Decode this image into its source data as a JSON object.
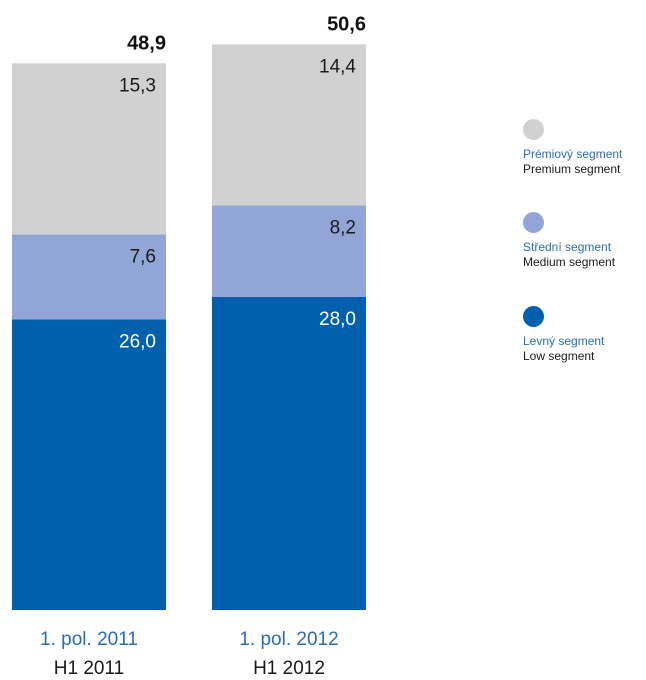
{
  "chart_data": {
    "type": "bar",
    "stacked": true,
    "categories": [
      {
        "label_cz": "1. pol. 2011",
        "label_en": "H1 2011",
        "total_label": "48,9"
      },
      {
        "label_cz": "1. pol. 2012",
        "label_en": "H1 2012",
        "total_label": "50,6"
      }
    ],
    "series": [
      {
        "name_cz": "Levný segment",
        "name_en": "Low segment",
        "color": "#0060ae",
        "label_color": "#ffffff",
        "values": [
          26.0,
          28.0
        ],
        "value_labels": [
          "26,0",
          "28,0"
        ]
      },
      {
        "name_cz": "Střední segment",
        "name_en": "Medium segment",
        "color": "#91a6d7",
        "label_color": "#1a1a1a",
        "values": [
          7.6,
          8.2
        ],
        "value_labels": [
          "7,6",
          "8,2"
        ]
      },
      {
        "name_cz": "Prémiový segment",
        "name_en": "Premium segment",
        "color": "#d1d1d1",
        "label_color": "#1a1a1a",
        "values": [
          15.3,
          14.4
        ],
        "value_labels": [
          "15,3",
          "14,4"
        ]
      }
    ],
    "totals": [
      48.9,
      50.6
    ],
    "legend_position": "right",
    "grid": false
  },
  "legend": {
    "items": [
      {
        "name_cz": "Prémiový segment",
        "name_en": "Premium segment",
        "color": "#d1d1d1"
      },
      {
        "name_cz": "Střední segment",
        "name_en": "Medium segment",
        "color": "#91a6d7"
      },
      {
        "name_cz": "Levný segment",
        "name_en": "Low segment",
        "color": "#0060ae"
      }
    ]
  },
  "colors": {
    "category_label_cz": "#2a6db3",
    "category_label_en": "#1a1a1a",
    "total_label": "#111111"
  }
}
